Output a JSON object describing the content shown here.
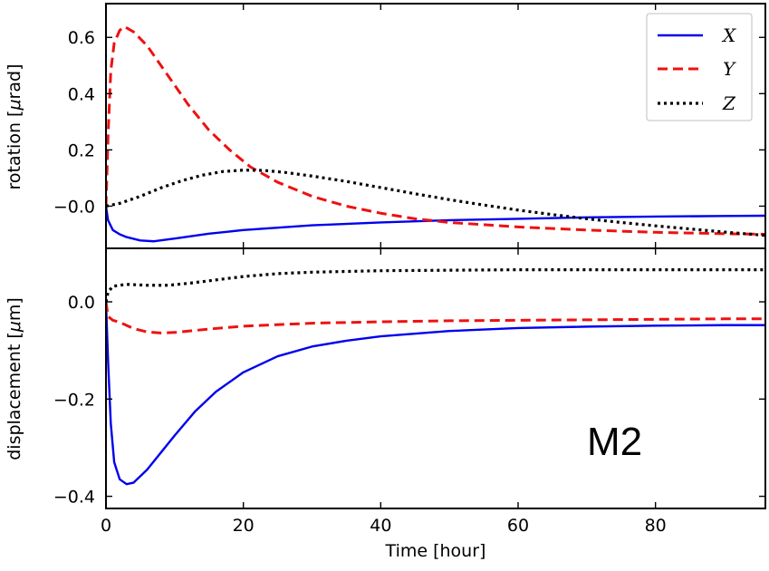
{
  "chart_data": [
    {
      "type": "line",
      "panel": "top",
      "ylabel_prefix": "rotation [",
      "ylabel_unit_symbol": "μ",
      "ylabel_unit": "rad",
      "ylabel_suffix": "]",
      "xlim": [
        0,
        96
      ],
      "ylim": [
        -0.15,
        0.72
      ],
      "yticks": [
        -0.0,
        0.2,
        0.4,
        0.6
      ],
      "ytick_labels": [
        "−0.0",
        "0.2",
        "0.4",
        "0.6"
      ],
      "legend_position": "top-right",
      "series": [
        {
          "name": "X",
          "color": "#0000ee",
          "style": "solid",
          "points": [
            [
              0,
              0.0
            ],
            [
              0.3,
              -0.05
            ],
            [
              1,
              -0.085
            ],
            [
              2,
              -0.1
            ],
            [
              3,
              -0.11
            ],
            [
              5,
              -0.122
            ],
            [
              7,
              -0.125
            ],
            [
              10,
              -0.115
            ],
            [
              15,
              -0.098
            ],
            [
              20,
              -0.085
            ],
            [
              30,
              -0.068
            ],
            [
              40,
              -0.058
            ],
            [
              50,
              -0.05
            ],
            [
              60,
              -0.045
            ],
            [
              70,
              -0.04
            ],
            [
              80,
              -0.037
            ],
            [
              90,
              -0.035
            ],
            [
              96,
              -0.034
            ]
          ]
        },
        {
          "name": "Y",
          "color": "#ee1111",
          "style": "dashed",
          "points": [
            [
              0,
              0.0
            ],
            [
              0.3,
              0.25
            ],
            [
              0.7,
              0.48
            ],
            [
              1.2,
              0.58
            ],
            [
              2,
              0.625
            ],
            [
              2.7,
              0.638
            ],
            [
              4,
              0.62
            ],
            [
              6,
              0.57
            ],
            [
              8,
              0.5
            ],
            [
              10,
              0.43
            ],
            [
              12,
              0.36
            ],
            [
              15,
              0.27
            ],
            [
              18,
              0.2
            ],
            [
              21,
              0.14
            ],
            [
              25,
              0.085
            ],
            [
              30,
              0.035
            ],
            [
              35,
              0.0
            ],
            [
              40,
              -0.025
            ],
            [
              45,
              -0.045
            ],
            [
              50,
              -0.058
            ],
            [
              60,
              -0.074
            ],
            [
              70,
              -0.085
            ],
            [
              80,
              -0.093
            ],
            [
              90,
              -0.098
            ],
            [
              96,
              -0.1
            ]
          ]
        },
        {
          "name": "Z",
          "color": "#000000",
          "style": "dotted",
          "points": [
            [
              0,
              0.0
            ],
            [
              2,
              0.01
            ],
            [
              5,
              0.035
            ],
            [
              8,
              0.065
            ],
            [
              11,
              0.09
            ],
            [
              14,
              0.11
            ],
            [
              17,
              0.123
            ],
            [
              20,
              0.128
            ],
            [
              23,
              0.127
            ],
            [
              26,
              0.12
            ],
            [
              30,
              0.107
            ],
            [
              35,
              0.088
            ],
            [
              40,
              0.066
            ],
            [
              45,
              0.044
            ],
            [
              50,
              0.023
            ],
            [
              55,
              0.004
            ],
            [
              60,
              -0.014
            ],
            [
              65,
              -0.03
            ],
            [
              70,
              -0.045
            ],
            [
              75,
              -0.058
            ],
            [
              80,
              -0.07
            ],
            [
              85,
              -0.081
            ],
            [
              90,
              -0.092
            ],
            [
              96,
              -0.104
            ]
          ]
        }
      ]
    },
    {
      "type": "line",
      "panel": "bottom",
      "ylabel_prefix": "displacement [",
      "ylabel_unit_symbol": "μ",
      "ylabel_unit": "m",
      "ylabel_suffix": "]",
      "xlabel": "Time [hour]",
      "xlim": [
        0,
        96
      ],
      "ylim": [
        -0.425,
        0.11
      ],
      "xticks": [
        0,
        20,
        40,
        60,
        80
      ],
      "xtick_labels": [
        "0",
        "20",
        "40",
        "60",
        "80"
      ],
      "yticks": [
        -0.4,
        -0.2,
        0.0
      ],
      "ytick_labels": [
        "−0.4",
        "−0.2",
        "0.0"
      ],
      "annotation": "M2",
      "series": [
        {
          "name": "X",
          "color": "#0000ee",
          "style": "solid",
          "points": [
            [
              0,
              0.0
            ],
            [
              0.3,
              -0.12
            ],
            [
              0.7,
              -0.25
            ],
            [
              1.2,
              -0.33
            ],
            [
              2,
              -0.365
            ],
            [
              3,
              -0.375
            ],
            [
              4,
              -0.372
            ],
            [
              6,
              -0.345
            ],
            [
              8,
              -0.31
            ],
            [
              10,
              -0.275
            ],
            [
              13,
              -0.225
            ],
            [
              16,
              -0.185
            ],
            [
              20,
              -0.145
            ],
            [
              25,
              -0.112
            ],
            [
              30,
              -0.092
            ],
            [
              35,
              -0.08
            ],
            [
              40,
              -0.071
            ],
            [
              50,
              -0.06
            ],
            [
              60,
              -0.054
            ],
            [
              70,
              -0.051
            ],
            [
              80,
              -0.049
            ],
            [
              90,
              -0.048
            ],
            [
              96,
              -0.048
            ]
          ]
        },
        {
          "name": "Y",
          "color": "#ee1111",
          "style": "dashed",
          "points": [
            [
              0,
              0.0
            ],
            [
              0.3,
              -0.03
            ],
            [
              1,
              -0.038
            ],
            [
              2,
              -0.042
            ],
            [
              4,
              -0.055
            ],
            [
              6,
              -0.062
            ],
            [
              8,
              -0.064
            ],
            [
              10,
              -0.063
            ],
            [
              15,
              -0.056
            ],
            [
              20,
              -0.05
            ],
            [
              30,
              -0.044
            ],
            [
              40,
              -0.041
            ],
            [
              50,
              -0.039
            ],
            [
              60,
              -0.038
            ],
            [
              70,
              -0.037
            ],
            [
              80,
              -0.036
            ],
            [
              90,
              -0.035
            ],
            [
              96,
              -0.035
            ]
          ]
        },
        {
          "name": "Z",
          "color": "#000000",
          "style": "dotted",
          "points": [
            [
              0,
              0.0
            ],
            [
              0.3,
              0.02
            ],
            [
              1,
              0.032
            ],
            [
              3,
              0.036
            ],
            [
              6,
              0.034
            ],
            [
              9,
              0.034
            ],
            [
              12,
              0.038
            ],
            [
              16,
              0.045
            ],
            [
              20,
              0.052
            ],
            [
              25,
              0.058
            ],
            [
              30,
              0.061
            ],
            [
              40,
              0.064
            ],
            [
              50,
              0.065
            ],
            [
              60,
              0.066
            ],
            [
              70,
              0.066
            ],
            [
              80,
              0.066
            ],
            [
              90,
              0.066
            ],
            [
              96,
              0.066
            ]
          ]
        }
      ]
    }
  ],
  "legend": {
    "items": [
      {
        "label": "X",
        "color": "#0000ee",
        "style": "solid"
      },
      {
        "label": "Y",
        "color": "#ee1111",
        "style": "dashed"
      },
      {
        "label": "Z",
        "color": "#000000",
        "style": "dotted"
      }
    ]
  }
}
